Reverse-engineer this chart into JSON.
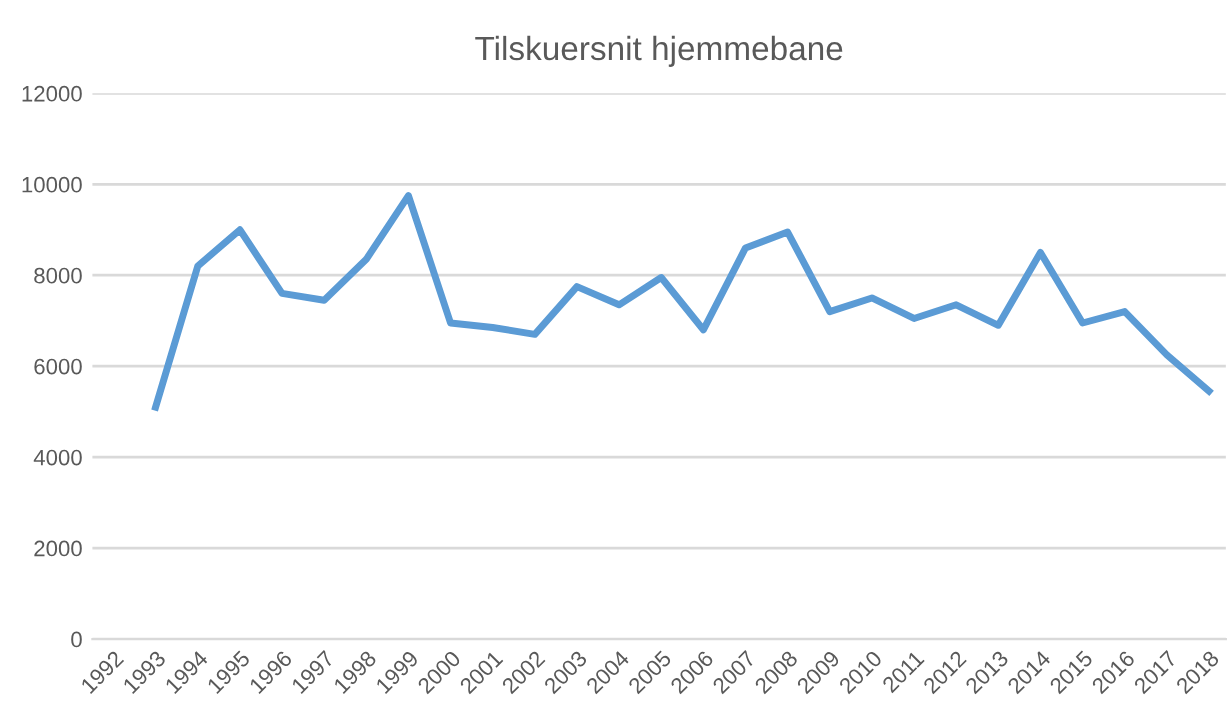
{
  "chart_data": {
    "type": "line",
    "title": "Tilskuersnit hjemmebane",
    "categories": [
      "1992",
      "1993",
      "1994",
      "1995",
      "1996",
      "1997",
      "1998",
      "1999",
      "2000",
      "2001",
      "2002",
      "2003",
      "2004",
      "2005",
      "2006",
      "2007",
      "2008",
      "2009",
      "2010",
      "2011",
      "2012",
      "2013",
      "2014",
      "2015",
      "2016",
      "2017",
      "2018"
    ],
    "series": [
      {
        "color": "#5b9bd5",
        "values": [
          null,
          5100,
          8200,
          9000,
          7600,
          7450,
          8350,
          9750,
          6950,
          6850,
          6700,
          7750,
          7350,
          7950,
          6800,
          8600,
          8950,
          7200,
          7500,
          7050,
          7350,
          6900,
          8500,
          6950,
          7200,
          6250,
          5450
        ]
      }
    ],
    "ylim": [
      0,
      12000
    ],
    "yticks": [
      0,
      2000,
      4000,
      6000,
      8000,
      10000,
      12000
    ],
    "grid": "y",
    "marker": "none",
    "line_style": "solid"
  }
}
